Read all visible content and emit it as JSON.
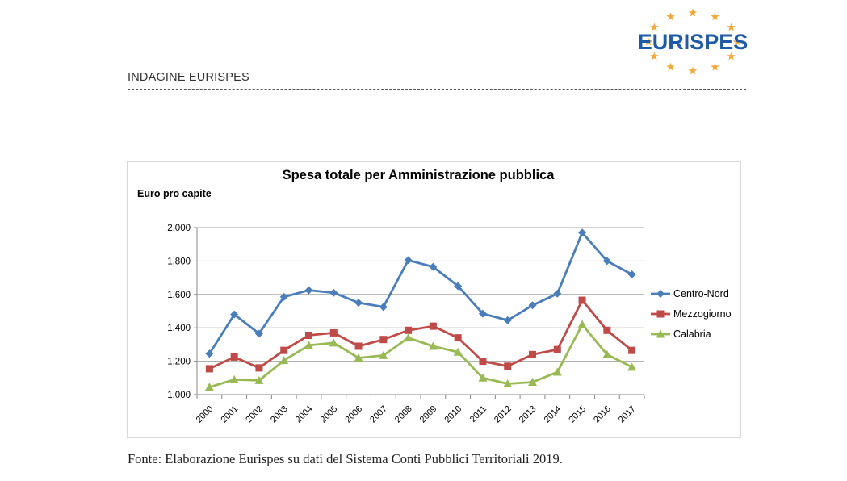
{
  "header": {
    "logo_text": "EURISPES",
    "title": "INDAGINE EURISPES"
  },
  "source_note": "Fonte: Elaborazione Eurispes su dati del Sistema Conti Pubblici Territoriali 2019.",
  "colors": {
    "logo_text": "#1f5aa6",
    "logo_stars": "#f3a93a",
    "Centro-Nord": "#4a7ebb",
    "Mezzogiorno": "#be4b48",
    "Calabria": "#98b954",
    "grid": "#a6a6a6"
  },
  "chart_data": {
    "type": "line",
    "title": "Spesa totale per Amministrazione pubblica",
    "ylabel": "Euro pro capite",
    "xlabel": "",
    "x": [
      "2000",
      "2001",
      "2002",
      "2003",
      "2004",
      "2005",
      "2006",
      "2007",
      "2008",
      "2009",
      "2010",
      "2011",
      "2012",
      "2013",
      "2014",
      "2015",
      "2016",
      "2017"
    ],
    "ylim": [
      1000,
      2000
    ],
    "yticks": [
      1000,
      1200,
      1400,
      1600,
      1800,
      2000
    ],
    "ytick_labels": [
      "1.000",
      "1.200",
      "1.400",
      "1.600",
      "1.800",
      "2.000"
    ],
    "grid": true,
    "legend_position": "right",
    "series": [
      {
        "name": "Centro-Nord",
        "marker": "diamond",
        "values": [
          1245,
          1480,
          1365,
          1585,
          1625,
          1610,
          1550,
          1525,
          1805,
          1765,
          1650,
          1485,
          1445,
          1535,
          1605,
          1970,
          1800,
          1720
        ]
      },
      {
        "name": "Mezzogiorno",
        "marker": "square",
        "values": [
          1155,
          1225,
          1160,
          1265,
          1355,
          1370,
          1290,
          1330,
          1385,
          1410,
          1340,
          1200,
          1170,
          1240,
          1270,
          1565,
          1385,
          1265
        ]
      },
      {
        "name": "Calabria",
        "marker": "triangle",
        "values": [
          1045,
          1090,
          1085,
          1205,
          1295,
          1310,
          1220,
          1235,
          1340,
          1290,
          1255,
          1100,
          1065,
          1075,
          1135,
          1420,
          1240,
          1165
        ]
      }
    ]
  }
}
